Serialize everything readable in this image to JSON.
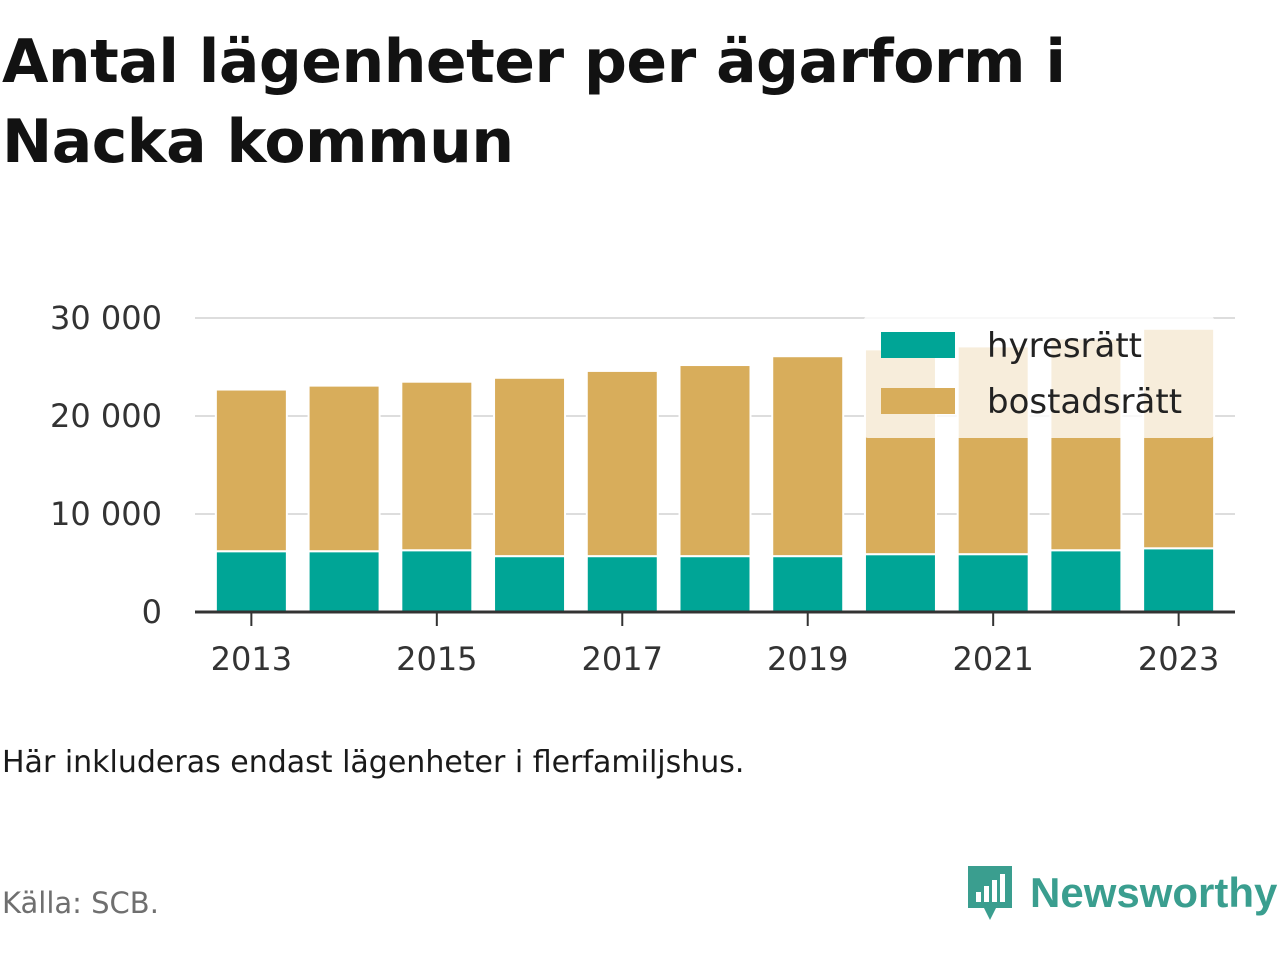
{
  "title": "Antal lägenheter per ägarform i Nacka kommun",
  "note": "Här inkluderas endast lägenheter i flerfamiljshus.",
  "source": "Källa: SCB.",
  "brand": {
    "name": "Newsworthy",
    "icon": "newsworthy-logo-icon",
    "color": "#3a9e8f"
  },
  "chart_data": {
    "type": "bar",
    "stacked": true,
    "x": [
      2013,
      2014,
      2015,
      2016,
      2017,
      2018,
      2019,
      2020,
      2021,
      2022,
      2023
    ],
    "x_tick_labels": [
      "2013",
      "2015",
      "2017",
      "2019",
      "2021",
      "2023"
    ],
    "series": [
      {
        "name": "hyresrätt",
        "color": "#00a596",
        "values": [
          6200,
          6200,
          6300,
          5700,
          5700,
          5700,
          5700,
          5900,
          5900,
          6300,
          6500
        ]
      },
      {
        "name": "bostadsrätt",
        "color": "#d8ad5b",
        "values": [
          16500,
          16900,
          17200,
          18200,
          18900,
          19500,
          20400,
          20900,
          21200,
          21600,
          22400
        ]
      }
    ],
    "ylim": [
      0,
      30000
    ],
    "y_ticks": [
      0,
      10000,
      20000,
      30000
    ],
    "y_tick_labels": [
      "0",
      "10 000",
      "20 000",
      "30 000"
    ],
    "grid": true,
    "legend_position": "top-right",
    "xlabel": "",
    "ylabel": ""
  }
}
